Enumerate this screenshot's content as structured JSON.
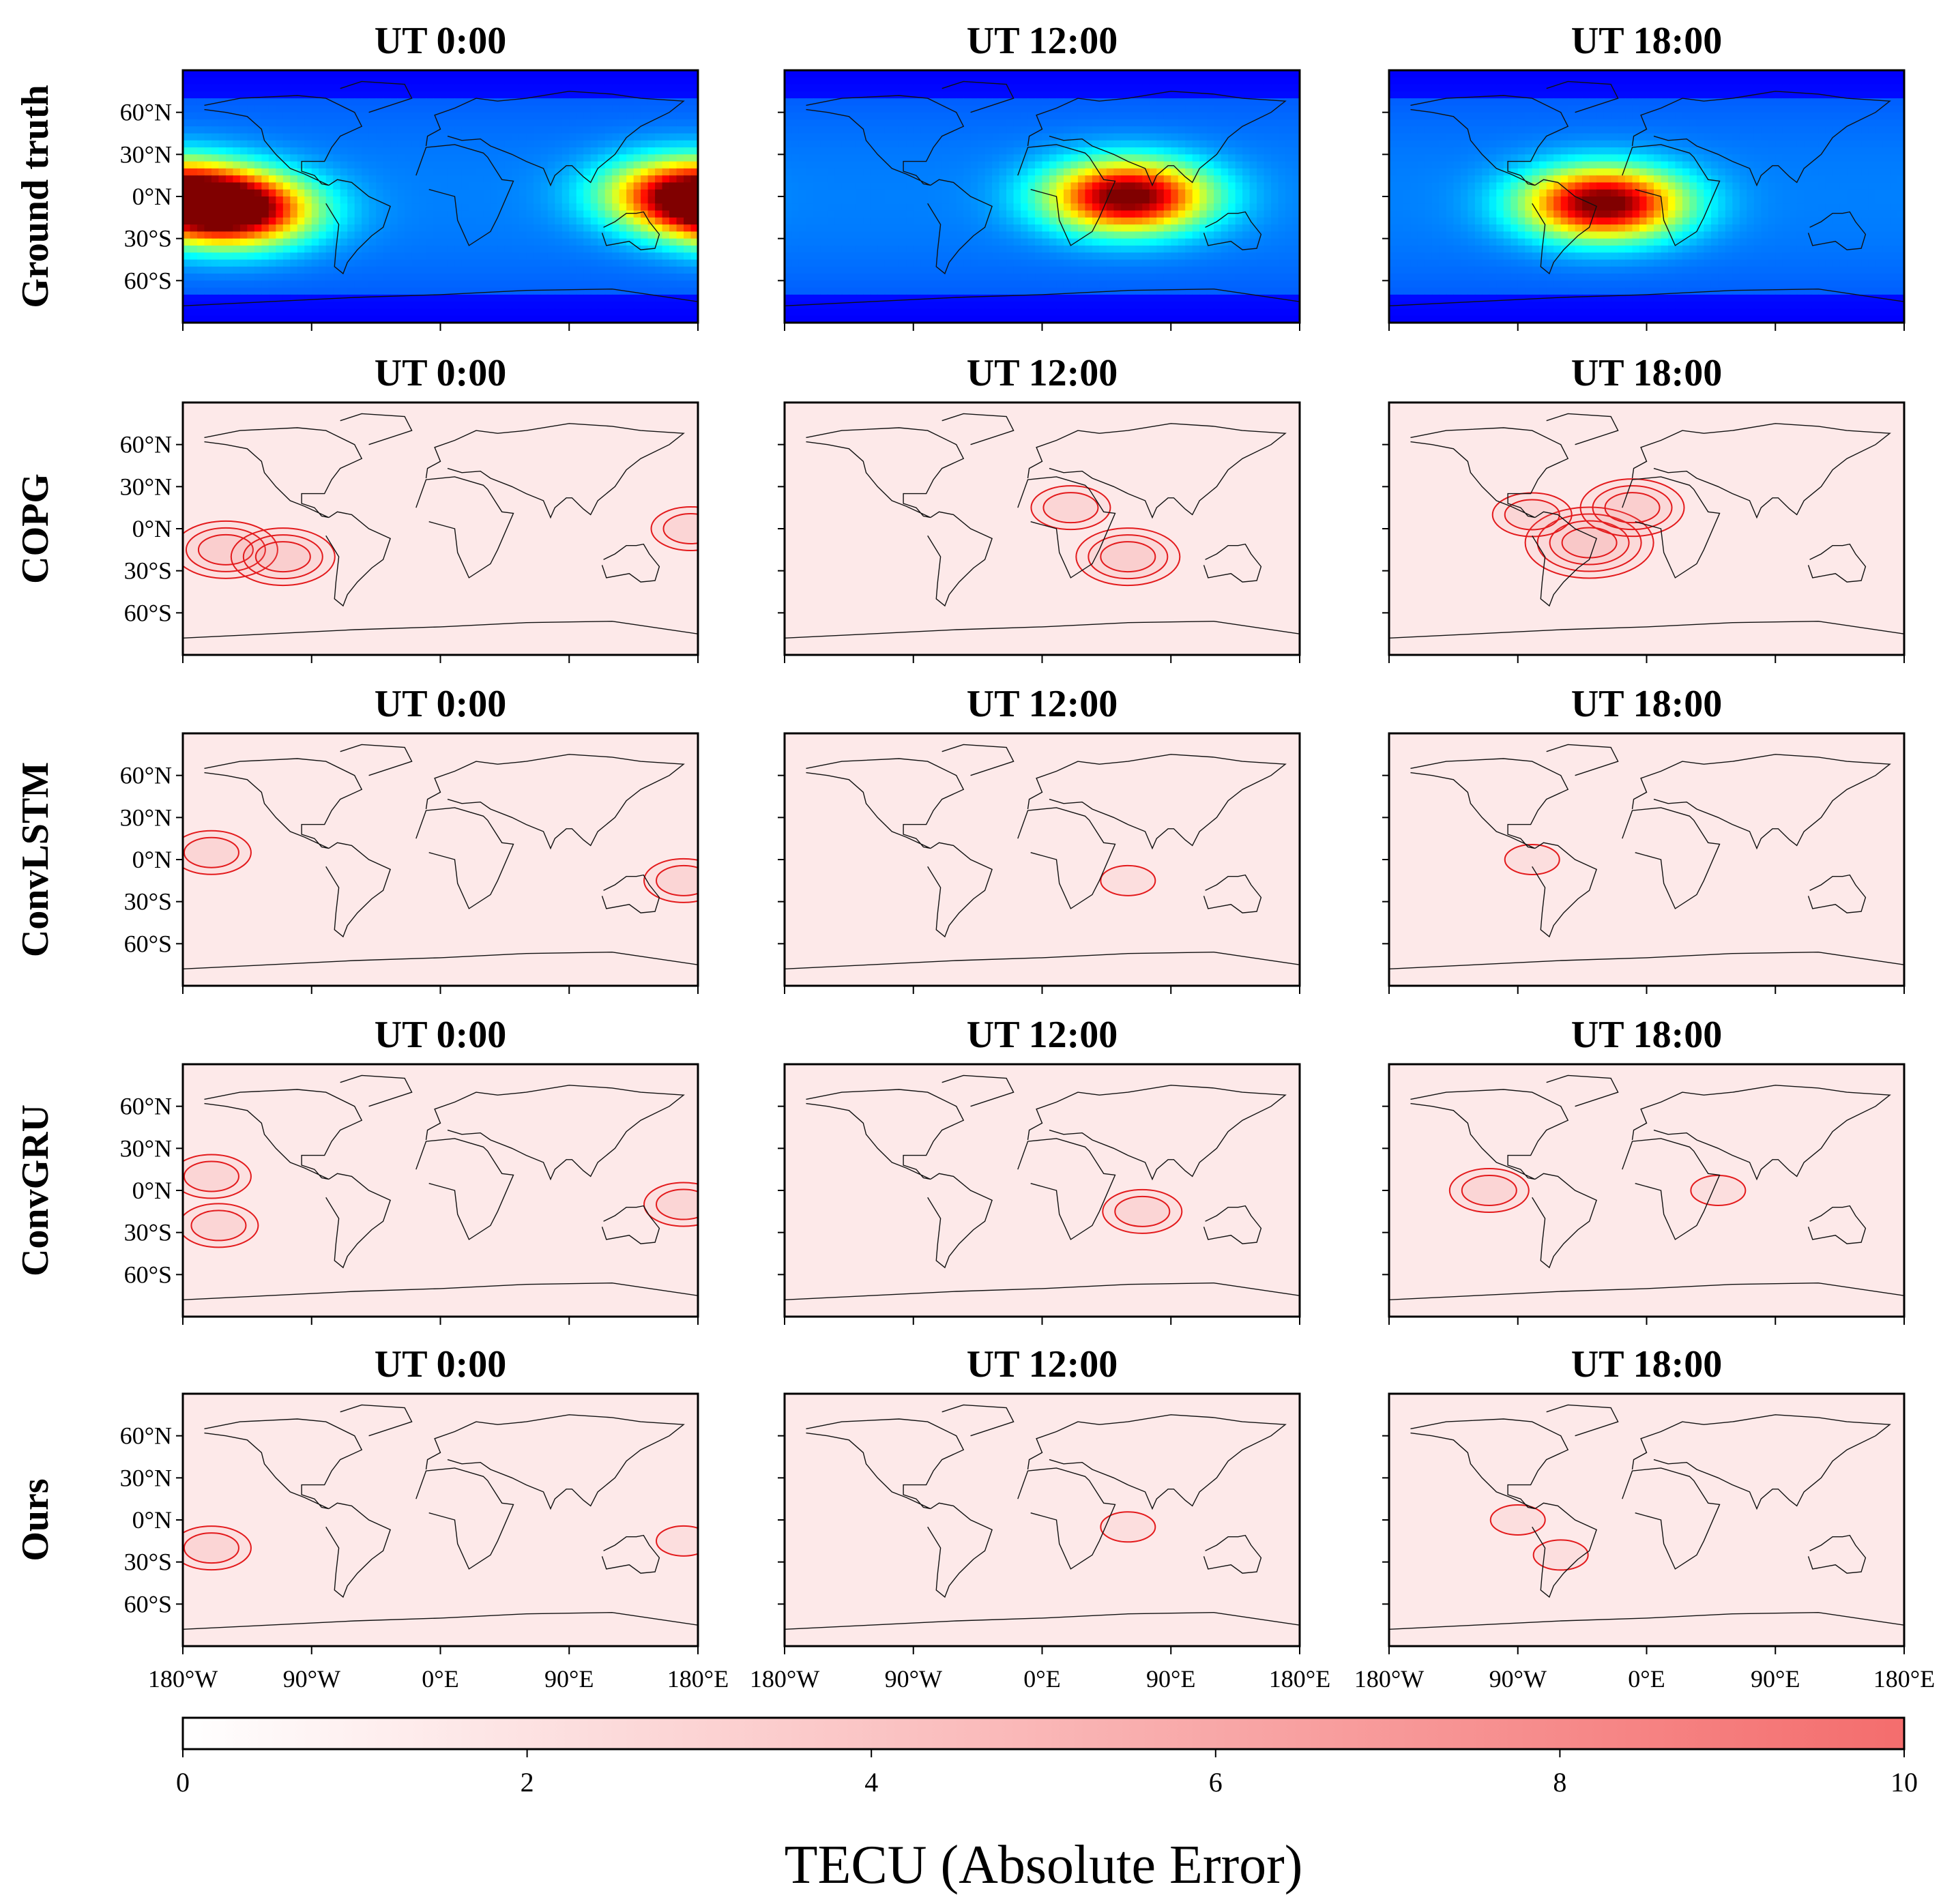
{
  "chart_data": {
    "type": "heatmap",
    "title": "",
    "description_units": "TECU",
    "columns": [
      "UT 0:00",
      "UT 12:00",
      "UT 18:00"
    ],
    "rows": [
      {
        "label": "Ground truth",
        "kind": "tec",
        "hotspots": [
          [
            {
              "lon": -145,
              "lat": -10,
              "amp": 1.0
            },
            {
              "lon": 170,
              "lat": 2,
              "amp": 0.8
            }
          ],
          [
            {
              "lon": 60,
              "lat": 0,
              "amp": 1.0
            }
          ],
          [
            {
              "lon": -30,
              "lat": -5,
              "amp": 1.0
            }
          ]
        ]
      },
      {
        "label": "COPG",
        "kind": "error",
        "hotspots": [
          [
            {
              "lon": -150,
              "lat": -15,
              "amp": 0.55
            },
            {
              "lon": -110,
              "lat": -20,
              "amp": 0.5
            },
            {
              "lon": 175,
              "lat": 0,
              "amp": 0.4
            }
          ],
          [
            {
              "lon": 60,
              "lat": -20,
              "amp": 0.55
            },
            {
              "lon": 20,
              "lat": 15,
              "amp": 0.3
            }
          ],
          [
            {
              "lon": -40,
              "lat": -10,
              "amp": 0.6
            },
            {
              "lon": -10,
              "lat": 15,
              "amp": 0.5
            },
            {
              "lon": -80,
              "lat": 10,
              "amp": 0.35
            }
          ]
        ]
      },
      {
        "label": "ConvLSTM",
        "kind": "error",
        "hotspots": [
          [
            {
              "lon": -160,
              "lat": 5,
              "amp": 0.3
            },
            {
              "lon": 170,
              "lat": -15,
              "amp": 0.3
            }
          ],
          [
            {
              "lon": 60,
              "lat": -15,
              "amp": 0.2
            }
          ],
          [
            {
              "lon": -80,
              "lat": 0,
              "amp": 0.2
            }
          ]
        ]
      },
      {
        "label": "ConvGRU",
        "kind": "error",
        "hotspots": [
          [
            {
              "lon": -160,
              "lat": 10,
              "amp": 0.3
            },
            {
              "lon": -155,
              "lat": -25,
              "amp": 0.3
            },
            {
              "lon": 170,
              "lat": -10,
              "amp": 0.3
            }
          ],
          [
            {
              "lon": 70,
              "lat": -15,
              "amp": 0.4
            }
          ],
          [
            {
              "lon": -110,
              "lat": 0,
              "amp": 0.25
            },
            {
              "lon": 50,
              "lat": 0,
              "amp": 0.2
            }
          ]
        ]
      },
      {
        "label": "Ours",
        "kind": "error",
        "hotspots": [
          [
            {
              "lon": -160,
              "lat": -20,
              "amp": 0.3
            },
            {
              "lon": 170,
              "lat": -15,
              "amp": 0.2
            }
          ],
          [
            {
              "lon": 60,
              "lat": -5,
              "amp": 0.15
            }
          ],
          [
            {
              "lon": -60,
              "lat": -25,
              "amp": 0.2
            },
            {
              "lon": -90,
              "lat": 0,
              "amp": 0.15
            }
          ]
        ]
      }
    ],
    "x_ticks": [
      "180°W",
      "90°W",
      "0°E",
      "90°E",
      "180°E"
    ],
    "y_ticks": [
      "60°N",
      "30°N",
      "0°N",
      "30°S",
      "60°S"
    ],
    "x_tick_values": [
      -180,
      -90,
      0,
      90,
      180
    ],
    "y_tick_values": [
      60,
      30,
      0,
      -30,
      -60
    ],
    "xlim": [
      -180,
      180
    ],
    "ylim": [
      -90,
      90
    ],
    "colorbar": {
      "label": "TECU (Absolute Error)",
      "ticks": [
        "0",
        "2",
        "4",
        "6",
        "8",
        "10"
      ],
      "range": [
        0,
        10
      ],
      "color_low": "#ffffff",
      "color_high": "#f46d6d"
    },
    "colors": {
      "contour": "#e31a1c",
      "error_base": "#fde9e9"
    }
  }
}
